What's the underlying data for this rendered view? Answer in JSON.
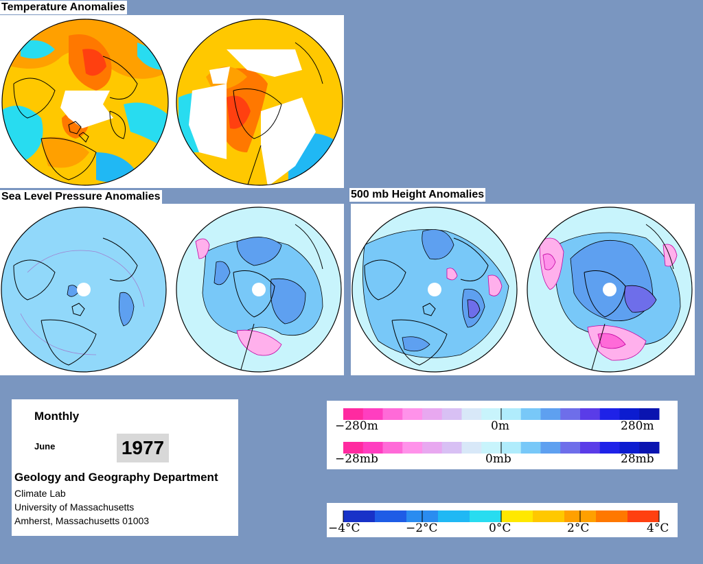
{
  "sections": {
    "temperature": "Temperature Anomalies",
    "slp": "Sea Level Pressure Anomalies",
    "height": "500 mb Height Anomalies"
  },
  "info": {
    "period": "Monthly",
    "month": "June",
    "year": "1977",
    "dept": "Geology and Geography Department",
    "lab": "Climate Lab",
    "university": "University of Massachusetts",
    "address": "Amherst, Massachusetts 01003"
  },
  "legends": {
    "height": {
      "left": "−280m",
      "center": "0m",
      "right": "280m"
    },
    "pressure": {
      "left": "−28mb",
      "center": "0mb",
      "right": "28mb"
    },
    "temperature": {
      "labels": [
        "−4°C",
        "−2°C",
        "0°C",
        "2°C",
        "4°C"
      ]
    }
  },
  "colors": {
    "background": "#7a96c0",
    "pressure_scale": [
      "#ff2aa0",
      "#ff3ec0",
      "#ff6ad8",
      "#ff92ea",
      "#e8a8f0",
      "#d8c0f4",
      "#d8e8f8",
      "#c8f4fc",
      "#b0ecfc",
      "#78c8f8",
      "#5ea0f0",
      "#6e6eea",
      "#5a3ce8",
      "#1e22e8",
      "#0c1cd0",
      "#0a14b0"
    ],
    "temperature_scale": [
      "#1832c8",
      "#1e5ce6",
      "#2a8cf0",
      "#20b8f4",
      "#28dcf0",
      "#ffe800",
      "#ffc800",
      "#ffa000",
      "#ff7800",
      "#ff4010"
    ]
  }
}
